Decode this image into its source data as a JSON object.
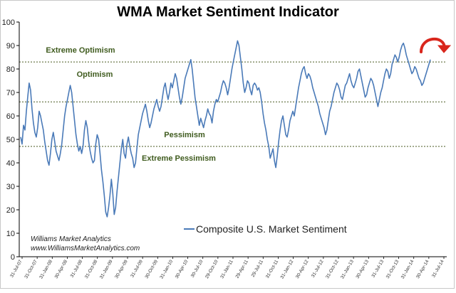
{
  "chart_data": {
    "type": "line",
    "title": "WMA Market Sentiment Indicator",
    "ylim": [
      0,
      100
    ],
    "y_ticks": [
      0,
      10,
      20,
      30,
      40,
      50,
      60,
      70,
      80,
      90,
      100
    ],
    "x_tick_labels": [
      "31-Jul-07",
      "31-Oct-07",
      "31-Jan-08",
      "30-Apr-08",
      "31-Jul-08",
      "31-Oct-08",
      "31-Jan-09",
      "30-Apr-09",
      "31-Jul-09",
      "30-Oct-09",
      "31-Jan-10",
      "30-Apr-10",
      "30-Jul-10",
      "29-Oct-10",
      "31-Jan-11",
      "29-Apr-11",
      "29-Jul-11",
      "31-Oct-11",
      "31-Jan-12",
      "30-Apr-12",
      "31-Jul-12",
      "31-Oct-12",
      "31-Jan-13",
      "30-Apr-13",
      "31-Jul-13",
      "31-Oct-13",
      "31-Jan-14",
      "30-Apr-14",
      "31-Jul-14"
    ],
    "thresholds": [
      {
        "value": 83,
        "color": "#4a5a22"
      },
      {
        "value": 66,
        "color": "#4a5a22"
      },
      {
        "value": 47,
        "color": "#4a5a22"
      }
    ],
    "zone_labels": {
      "extreme_optimism": "Extreme Optimism",
      "optimism": "Optimism",
      "pessimism": "Pessimism",
      "extreme_pessimism": "Extreme Pessimism"
    },
    "series": [
      {
        "name": "Composite U.S. Market Sentiment",
        "color": "#4a7ab8",
        "values": [
          51,
          48,
          56,
          54,
          62,
          68,
          74,
          71,
          63,
          57,
          53,
          51,
          55,
          62,
          60,
          57,
          54,
          49,
          45,
          41,
          39,
          44,
          50,
          53,
          49,
          45,
          43,
          41,
          44,
          48,
          54,
          60,
          64,
          67,
          70,
          73,
          70,
          64,
          58,
          52,
          48,
          45,
          47,
          44,
          47,
          54,
          58,
          55,
          49,
          45,
          42,
          40,
          41,
          48,
          52,
          50,
          44,
          37,
          32,
          26,
          19,
          17,
          21,
          26,
          33,
          27,
          18,
          21,
          28,
          34,
          40,
          46,
          50,
          44,
          42,
          48,
          51,
          47,
          44,
          42,
          38,
          40,
          46,
          52,
          55,
          58,
          61,
          63,
          65,
          62,
          58,
          55,
          57,
          60,
          63,
          65,
          67,
          64,
          62,
          64,
          68,
          72,
          74,
          70,
          67,
          70,
          74,
          72,
          75,
          78,
          76,
          72,
          68,
          65,
          68,
          72,
          76,
          78,
          80,
          82,
          84,
          80,
          74,
          68,
          64,
          60,
          56,
          59,
          57,
          55,
          58,
          60,
          63,
          61,
          60,
          57,
          62,
          65,
          67,
          66,
          68,
          70,
          73,
          75,
          74,
          72,
          69,
          72,
          76,
          80,
          83,
          86,
          89,
          92,
          90,
          85,
          80,
          74,
          70,
          72,
          75,
          74,
          71,
          69,
          73,
          74,
          73,
          71,
          72,
          70,
          66,
          61,
          57,
          54,
          50,
          47,
          42,
          44,
          46,
          41,
          38,
          43,
          49,
          54,
          58,
          60,
          56,
          52,
          51,
          54,
          58,
          60,
          62,
          60,
          64,
          68,
          72,
          75,
          78,
          80,
          81,
          78,
          76,
          78,
          77,
          75,
          72,
          70,
          68,
          66,
          64,
          61,
          59,
          57,
          55,
          52,
          54,
          58,
          62,
          64,
          67,
          70,
          72,
          74,
          73,
          71,
          68,
          67,
          70,
          73,
          74,
          76,
          78,
          75,
          73,
          72,
          74,
          76,
          79,
          80,
          77,
          74,
          71,
          68,
          69,
          72,
          74,
          76,
          75,
          73,
          70,
          67,
          64,
          67,
          70,
          72,
          75,
          78,
          80,
          79,
          76,
          78,
          82,
          84,
          86,
          85,
          83,
          85,
          88,
          90,
          91,
          89,
          86,
          84,
          82,
          80,
          78,
          79,
          81,
          80,
          78,
          76,
          75,
          73,
          74,
          76,
          78,
          80,
          82,
          84
        ]
      }
    ]
  },
  "credits": {
    "line1": "Williams Market Analytics",
    "line2": "www.WilliamsMarketAnalytics.com"
  },
  "colors": {
    "turn_arrow": "#d9261c",
    "axis": "#000000"
  },
  "icons": {
    "turn_arrow": "curved-down-arrow-icon"
  }
}
